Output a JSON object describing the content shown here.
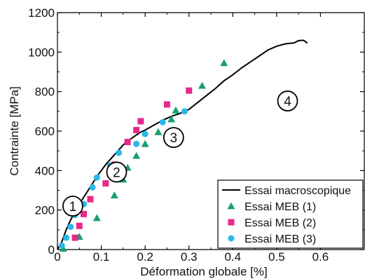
{
  "chart_data": {
    "type": "scatter",
    "xlabel": "Déformation globale [%]",
    "ylabel": "Contrainte [MPa]",
    "xlim": [
      0,
      0.7
    ],
    "ylim": [
      0,
      1200
    ],
    "xticks": [
      0,
      0.1,
      0.2,
      0.3,
      0.4,
      0.5,
      0.6
    ],
    "xtick_labels": [
      "0",
      "0.1",
      "0.2",
      "0.3",
      "0.4",
      "0.5",
      "0.6"
    ],
    "yticks": [
      0,
      200,
      400,
      600,
      800,
      1000,
      1200
    ],
    "ytick_labels": [
      "0",
      "200",
      "400",
      "600",
      "800",
      "1000",
      "1200"
    ],
    "grid": false,
    "legend_position": "bottom-right",
    "series": [
      {
        "name": "Essai macroscopique",
        "kind": "line",
        "color": "#000000",
        "x": [
          0,
          0.01,
          0.02,
          0.03,
          0.04,
          0.05,
          0.06,
          0.07,
          0.08,
          0.09,
          0.1,
          0.11,
          0.12,
          0.13,
          0.14,
          0.15,
          0.16,
          0.17,
          0.18,
          0.19,
          0.2,
          0.22,
          0.24,
          0.26,
          0.28,
          0.3,
          0.32,
          0.34,
          0.36,
          0.38,
          0.4,
          0.42,
          0.44,
          0.46,
          0.48,
          0.5,
          0.52,
          0.54,
          0.55,
          0.56,
          0.565,
          0.57
        ],
        "y": [
          0,
          40,
          100,
          150,
          190,
          230,
          265,
          300,
          335,
          370,
          400,
          430,
          455,
          480,
          505,
          530,
          550,
          565,
          580,
          595,
          605,
          630,
          655,
          675,
          690,
          710,
          745,
          780,
          815,
          855,
          885,
          920,
          950,
          980,
          1010,
          1030,
          1042,
          1047,
          1058,
          1060,
          1055,
          1045
        ]
      },
      {
        "name": "Essai MEB (1)",
        "kind": "scatter",
        "marker": "triangle",
        "color": "#1a9e76",
        "x": [
          0.013,
          0.05,
          0.09,
          0.13,
          0.15,
          0.16,
          0.18,
          0.2,
          0.23,
          0.26,
          0.27,
          0.33,
          0.38
        ],
        "y": [
          5,
          65,
          160,
          275,
          355,
          415,
          475,
          535,
          595,
          660,
          705,
          830,
          945
        ]
      },
      {
        "name": "Essai MEB (2)",
        "kind": "scatter",
        "marker": "square",
        "color": "#e7298a",
        "x": [
          0.04,
          0.05,
          0.06,
          0.075,
          0.11,
          0.12,
          0.13,
          0.16,
          0.18,
          0.19,
          0.25,
          0.3
        ],
        "y": [
          60,
          120,
          180,
          255,
          335,
          390,
          430,
          545,
          605,
          650,
          735,
          805
        ]
      },
      {
        "name": "Essai MEB (3)",
        "kind": "scatter",
        "marker": "circle",
        "color": "#2ab7e9",
        "x": [
          0.01,
          0.02,
          0.03,
          0.04,
          0.06,
          0.08,
          0.09,
          0.12,
          0.14,
          0.18,
          0.2,
          0.24,
          0.29
        ],
        "y": [
          20,
          60,
          115,
          175,
          230,
          315,
          365,
          425,
          490,
          535,
          585,
          645,
          700
        ]
      }
    ],
    "annotations": [
      {
        "label": "1",
        "x": 0.035,
        "y": 440
      },
      {
        "label": "2",
        "x": 0.135,
        "y": 785
      },
      {
        "label": "3",
        "x": 0.265,
        "y": 1135
      },
      {
        "label": "4",
        "x": 0.525,
        "y": 1505
      }
    ]
  }
}
